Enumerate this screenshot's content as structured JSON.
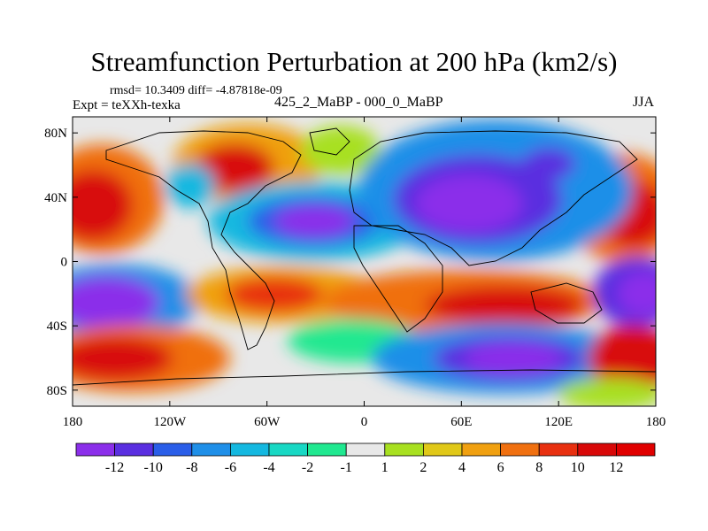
{
  "chart_data": {
    "type": "heatmap",
    "title": "Streamfunction Perturbation at 200 hPa (km2/s)",
    "stats_text": "rmsd= 10.3409 diff= -4.87818e-09",
    "left_label": "Expt = teXXh-texka",
    "center_label": "425_2_MaBP - 000_0_MaBP",
    "right_label": "JJA",
    "x_ticks": [
      {
        "lon": -180,
        "label": "180"
      },
      {
        "lon": -120,
        "label": "120W"
      },
      {
        "lon": -60,
        "label": "60W"
      },
      {
        "lon": 0,
        "label": "0"
      },
      {
        "lon": 60,
        "label": "60E"
      },
      {
        "lon": 120,
        "label": "120E"
      },
      {
        "lon": 180,
        "label": "180"
      }
    ],
    "y_ticks": [
      {
        "lat": 80,
        "label": "80N"
      },
      {
        "lat": 40,
        "label": "40N"
      },
      {
        "lat": 0,
        "label": "0"
      },
      {
        "lat": -40,
        "label": "40S"
      },
      {
        "lat": -80,
        "label": "80S"
      }
    ],
    "xlim": [
      -180,
      180
    ],
    "ylim": [
      -90,
      90
    ],
    "colorbar": {
      "levels": [
        -12,
        -10,
        -8,
        -6,
        -4,
        -2,
        -1,
        1,
        2,
        4,
        6,
        8,
        10,
        12
      ],
      "labels": [
        "-12",
        "-10",
        "-8",
        "-6",
        "-4",
        "-2",
        "-1",
        "1",
        "2",
        "4",
        "6",
        "8",
        "10",
        "12"
      ],
      "colors": [
        "#8b2fea",
        "#5a2fe0",
        "#2a5ee8",
        "#1f8fe8",
        "#14b8e0",
        "#18d8c4",
        "#20e890",
        "#e8e8e8",
        "#a8e020",
        "#e0c818",
        "#f0a010",
        "#f07010",
        "#e83010",
        "#d80808",
        "#e00000"
      ]
    },
    "field": [
      {
        "lon": -170,
        "lat": 35,
        "value": 12
      },
      {
        "lon": -90,
        "lat": 60,
        "value": 12
      },
      {
        "lon": -130,
        "lat": 45,
        "value": -2
      },
      {
        "lon": -50,
        "lat": 25,
        "value": -12
      },
      {
        "lon": 65,
        "lat": 40,
        "value": -12
      },
      {
        "lon": 110,
        "lat": 60,
        "value": -10
      },
      {
        "lon": 0,
        "lat": 70,
        "value": 2
      },
      {
        "lon": 170,
        "lat": 35,
        "value": 12
      },
      {
        "lon": -160,
        "lat": -25,
        "value": -12
      },
      {
        "lon": -80,
        "lat": -20,
        "value": 10
      },
      {
        "lon": 20,
        "lat": -30,
        "value": 8
      },
      {
        "lon": 110,
        "lat": -25,
        "value": 12
      },
      {
        "lon": 165,
        "lat": -20,
        "value": -12
      },
      {
        "lon": -160,
        "lat": -55,
        "value": 12
      },
      {
        "lon": -20,
        "lat": -45,
        "value": -4
      },
      {
        "lon": 90,
        "lat": -60,
        "value": -12
      },
      {
        "lon": 175,
        "lat": -55,
        "value": 12
      }
    ]
  }
}
